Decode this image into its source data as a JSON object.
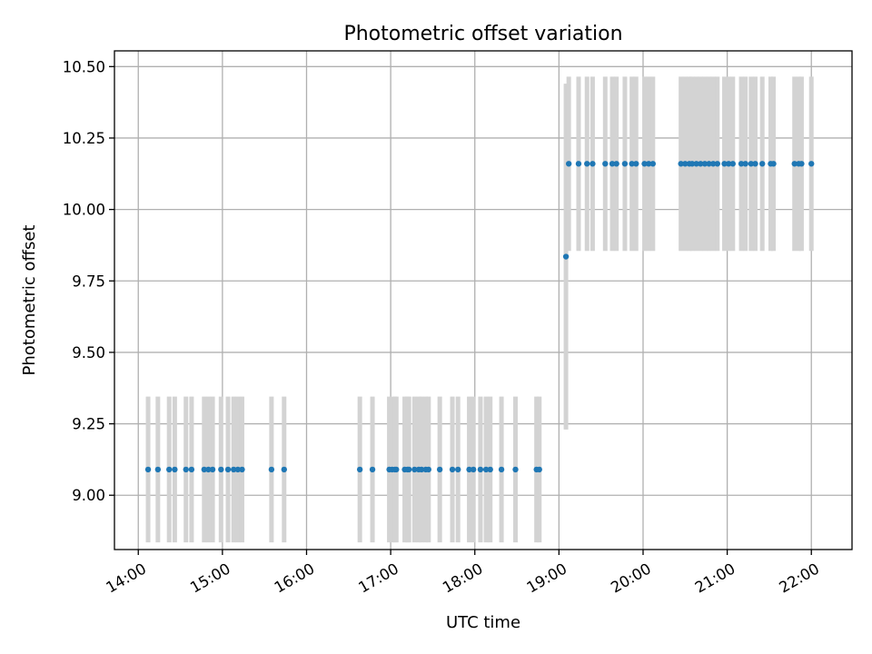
{
  "chart_data": {
    "type": "scatter",
    "title": "Photometric offset variation",
    "xlabel": "UTC time",
    "ylabel": "Photometric offset",
    "xlim": [
      "13:43",
      "22:29"
    ],
    "ylim": [
      8.81,
      10.555
    ],
    "grid": true,
    "xticks": [
      {
        "label": "14:00",
        "value": "14:00"
      },
      {
        "label": "15:00",
        "value": "15:00"
      },
      {
        "label": "16:00",
        "value": "16:00"
      },
      {
        "label": "17:00",
        "value": "17:00"
      },
      {
        "label": "18:00",
        "value": "18:00"
      },
      {
        "label": "19:00",
        "value": "19:00"
      },
      {
        "label": "20:00",
        "value": "20:00"
      },
      {
        "label": "21:00",
        "value": "21:00"
      },
      {
        "label": "22:00",
        "value": "22:00"
      }
    ],
    "yticks": [
      {
        "label": "9.00",
        "value": 9.0
      },
      {
        "label": "9.25",
        "value": 9.25
      },
      {
        "label": "9.50",
        "value": 9.5
      },
      {
        "label": "9.75",
        "value": 9.75
      },
      {
        "label": "10.00",
        "value": 10.0
      },
      {
        "label": "10.25",
        "value": 10.25
      },
      {
        "label": "10.50",
        "value": 10.5
      }
    ],
    "colors": {
      "points": "#1f77b4",
      "error_bars": "#d3d3d3"
    },
    "series": [
      {
        "x": [
          "14:07",
          "14:14",
          "14:22",
          "14:26",
          "14:34",
          "14:38",
          "14:47",
          "14:50",
          "14:53",
          "14:59",
          "15:04",
          "15:08",
          "15:11",
          "15:14",
          "15:35",
          "15:44",
          "16:38",
          "16:47",
          "16:59",
          "17:01",
          "17:03",
          "17:04",
          "17:10",
          "17:12",
          "17:13",
          "17:17",
          "17:20",
          "17:22",
          "17:25",
          "17:27",
          "17:35",
          "17:44",
          "17:48",
          "17:56",
          "17:59",
          "18:04",
          "18:08",
          "18:11",
          "18:19",
          "18:29",
          "18:44",
          "18:46",
          "19:05"
        ],
        "y": [
          9.09,
          9.09,
          9.09,
          9.09,
          9.09,
          9.09,
          9.09,
          9.09,
          9.09,
          9.09,
          9.09,
          9.09,
          9.09,
          9.09,
          9.09,
          9.09,
          9.09,
          9.09,
          9.09,
          9.09,
          9.09,
          9.09,
          9.09,
          9.09,
          9.09,
          9.09,
          9.09,
          9.09,
          9.09,
          9.09,
          9.09,
          9.09,
          9.09,
          9.09,
          9.09,
          9.09,
          9.09,
          9.09,
          9.09,
          9.09,
          9.09,
          9.09,
          9.835
        ],
        "yerr": [
          0.255,
          0.255,
          0.255,
          0.255,
          0.255,
          0.255,
          0.255,
          0.255,
          0.255,
          0.255,
          0.255,
          0.255,
          0.255,
          0.255,
          0.255,
          0.255,
          0.255,
          0.255,
          0.255,
          0.255,
          0.255,
          0.255,
          0.255,
          0.255,
          0.255,
          0.255,
          0.255,
          0.255,
          0.255,
          0.255,
          0.255,
          0.255,
          0.255,
          0.255,
          0.255,
          0.255,
          0.255,
          0.255,
          0.255,
          0.255,
          0.255,
          0.255,
          0.605
        ]
      },
      {
        "x": [
          "19:07",
          "19:14",
          "19:20",
          "19:24",
          "19:33",
          "19:38",
          "19:41",
          "19:47",
          "19:52",
          "19:55",
          "20:01",
          "20:04",
          "20:07",
          "20:27",
          "20:30",
          "20:33",
          "20:35",
          "20:38",
          "20:41",
          "20:44",
          "20:47",
          "20:50",
          "20:53",
          "20:58",
          "21:01",
          "21:04",
          "21:10",
          "21:13",
          "21:17",
          "21:20",
          "21:25",
          "21:31",
          "21:33",
          "21:48",
          "21:51",
          "21:53",
          "22:00"
        ],
        "y": [
          10.16,
          10.16,
          10.16,
          10.16,
          10.16,
          10.16,
          10.16,
          10.16,
          10.16,
          10.16,
          10.16,
          10.16,
          10.16,
          10.16,
          10.16,
          10.16,
          10.16,
          10.16,
          10.16,
          10.16,
          10.16,
          10.16,
          10.16,
          10.16,
          10.16,
          10.16,
          10.16,
          10.16,
          10.16,
          10.16,
          10.16,
          10.16,
          10.16,
          10.16,
          10.16,
          10.16,
          10.16
        ],
        "yerr": [
          0.305,
          0.305,
          0.305,
          0.305,
          0.305,
          0.305,
          0.305,
          0.305,
          0.305,
          0.305,
          0.305,
          0.305,
          0.305,
          0.305,
          0.305,
          0.305,
          0.305,
          0.305,
          0.305,
          0.305,
          0.305,
          0.305,
          0.305,
          0.305,
          0.305,
          0.305,
          0.305,
          0.305,
          0.305,
          0.305,
          0.305,
          0.305,
          0.305,
          0.305,
          0.305,
          0.305,
          0.305
        ]
      }
    ]
  }
}
